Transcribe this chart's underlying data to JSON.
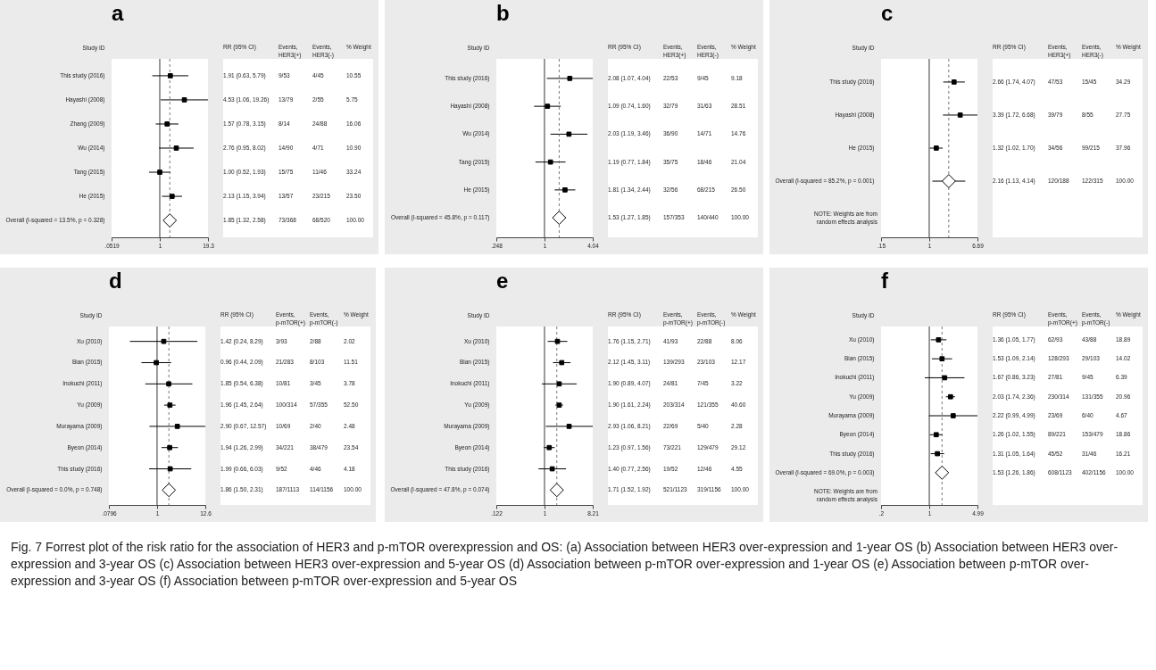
{
  "chart_data": [
    {
      "type": "scatter",
      "title": "a",
      "orientation": "horizontal",
      "log": "x",
      "ylabel": "Study ID",
      "xlim": [
        0.0519,
        19.3
      ],
      "xticks": [
        {
          "value": 0.0519,
          "label": ".0519"
        },
        1,
        19.3
      ],
      "categories": [
        "This study (2016)",
        "Hayashi (2008)",
        "Zhang (2009)",
        "Wu (2014)",
        "Tang (2015)",
        "He (2015)",
        "Overall (I-squared = 13.5%, p = 0.328)"
      ],
      "series": [
        {
          "color": "#000000",
          "marker": "square",
          "values": [
            1.91,
            4.53,
            1.57,
            2.76,
            1.0,
            2.13,
            null
          ],
          "errors": [
            [
              0.63,
              5.79
            ],
            [
              1.06,
              19.26
            ],
            [
              0.78,
              3.15
            ],
            [
              0.95,
              8.02
            ],
            [
              0.52,
              1.93
            ],
            [
              1.15,
              3.94
            ],
            null
          ]
        },
        {
          "color": "#000000",
          "marker": "diamond",
          "values": [
            null,
            null,
            null,
            null,
            null,
            null,
            1.85
          ],
          "errors": [
            null,
            null,
            null,
            null,
            null,
            null,
            [
              1.32,
              2.58
            ]
          ]
        }
      ],
      "ref_lines": [
        {
          "axis": "x",
          "value": 1,
          "color": "#000000"
        },
        {
          "axis": "x",
          "value": 1.85,
          "color": "#555555",
          "line_style": "dashed"
        }
      ],
      "annotations": [
        "RR (95% CI)",
        "Events, HER3(+)",
        "Events, HER3(-)",
        "% Weight",
        "1.91 (0.63, 5.79)",
        "9/53",
        "4/45",
        "10.55",
        "4.53 (1.06, 19.26)",
        "13/79",
        "2/55",
        "5.75",
        "1.57 (0.78, 3.15)",
        "8/14",
        "24/88",
        "16.06",
        "2.76 (0.95, 8.02)",
        "14/90",
        "4/71",
        "10.90",
        "1.00 (0.52, 1.93)",
        "15/75",
        "11/46",
        "33.24",
        "2.13 (1.15, 3.94)",
        "13/57",
        "23/215",
        "23.50",
        "1.85 (1.32, 2.58)",
        "73/368",
        "68/520",
        "100.00"
      ]
    },
    {
      "type": "scatter",
      "title": "b",
      "orientation": "horizontal",
      "log": "x",
      "ylabel": "Study ID",
      "xlim": [
        0.248,
        4.04
      ],
      "xticks": [
        {
          "value": 0.248,
          "label": ".248"
        },
        1,
        4.04
      ],
      "categories": [
        "This study (2016)",
        "Hayashi (2008)",
        "Wu (2014)",
        "Tang (2015)",
        "He (2015)",
        "Overall (I-squared = 45.8%, p = 0.117)"
      ],
      "series": [
        {
          "color": "#000000",
          "marker": "square",
          "values": [
            2.08,
            1.09,
            2.03,
            1.19,
            1.81,
            null
          ],
          "errors": [
            [
              1.07,
              4.04
            ],
            [
              0.74,
              1.6
            ],
            [
              1.19,
              3.46
            ],
            [
              0.77,
              1.84
            ],
            [
              1.34,
              2.44
            ],
            null
          ]
        },
        {
          "color": "#000000",
          "marker": "diamond",
          "values": [
            null,
            null,
            null,
            null,
            null,
            1.53
          ],
          "errors": [
            null,
            null,
            null,
            null,
            null,
            [
              1.27,
              1.85
            ]
          ]
        }
      ],
      "ref_lines": [
        {
          "axis": "x",
          "value": 1,
          "color": "#000000"
        },
        {
          "axis": "x",
          "value": 1.53,
          "color": "#555555",
          "line_style": "dashed"
        }
      ],
      "annotations": [
        "RR (95% CI)",
        "Events, HER3(+)",
        "Events, HER3(-)",
        "% Weight",
        "2.08 (1.07, 4.04)",
        "22/53",
        "9/45",
        "9.18",
        "1.09 (0.74, 1.60)",
        "32/79",
        "31/63",
        "28.51",
        "2.03 (1.19, 3.46)",
        "36/90",
        "14/71",
        "14.76",
        "1.19 (0.77, 1.84)",
        "35/75",
        "18/46",
        "21.04",
        "1.81 (1.34, 2.44)",
        "32/56",
        "68/215",
        "26.50",
        "1.53 (1.27, 1.85)",
        "157/353",
        "140/440",
        "100.00"
      ]
    },
    {
      "type": "scatter",
      "title": "c",
      "orientation": "horizontal",
      "log": "x",
      "ylabel": "Study ID",
      "xlim": [
        0.15,
        6.69
      ],
      "xticks": [
        {
          "value": 0.15,
          "label": ".15"
        },
        1,
        6.69
      ],
      "categories": [
        "This study (2016)",
        "Hayashi (2008)",
        "He (2015)",
        "Overall (I-squared = 85.2%, p = 0.001)"
      ],
      "series": [
        {
          "color": "#000000",
          "marker": "square",
          "values": [
            2.66,
            3.39,
            1.32,
            null
          ],
          "errors": [
            [
              1.74,
              4.07
            ],
            [
              1.72,
              6.68
            ],
            [
              1.02,
              1.7
            ],
            null
          ]
        },
        {
          "color": "#000000",
          "marker": "diamond",
          "values": [
            null,
            null,
            null,
            2.16
          ],
          "errors": [
            null,
            null,
            null,
            [
              1.13,
              4.14
            ]
          ]
        }
      ],
      "ref_lines": [
        {
          "axis": "x",
          "value": 1,
          "color": "#000000"
        },
        {
          "axis": "x",
          "value": 2.16,
          "color": "#555555",
          "line_style": "dashed"
        }
      ],
      "annotations": [
        "RR (95% CI)",
        "Events, HER3(+)",
        "Events, HER3(-)",
        "% Weight",
        "2.66 (1.74, 4.07)",
        "47/53",
        "15/45",
        "34.29",
        "3.39 (1.72, 6.68)",
        "39/79",
        "8/55",
        "27.75",
        "1.32 (1.02, 1.70)",
        "34/56",
        "99/215",
        "37.96",
        "2.16 (1.13, 4.14)",
        "120/188",
        "122/315",
        "100.00",
        "NOTE: Weights are from random effects analysis"
      ]
    },
    {
      "type": "scatter",
      "title": "d",
      "orientation": "horizontal",
      "log": "x",
      "ylabel": "Study ID",
      "xlim": [
        0.0796,
        12.6
      ],
      "xticks": [
        {
          "value": 0.0796,
          "label": ".0796"
        },
        1,
        12.6
      ],
      "categories": [
        "Xu (2010)",
        "Bian (2015)",
        "Inokuchi (2011)",
        "Yu (2009)",
        "Murayama (2009)",
        "Byeon (2014)",
        "This study (2016)",
        "Overall (I-squared = 0.0%, p = 0.748)"
      ],
      "series": [
        {
          "color": "#000000",
          "marker": "square",
          "values": [
            1.42,
            0.96,
            1.85,
            1.96,
            2.9,
            1.94,
            1.99,
            null
          ],
          "errors": [
            [
              0.24,
              8.29
            ],
            [
              0.44,
              2.09
            ],
            [
              0.54,
              6.38
            ],
            [
              1.45,
              2.64
            ],
            [
              0.67,
              12.57
            ],
            [
              1.26,
              2.99
            ],
            [
              0.66,
              6.03
            ],
            null
          ]
        },
        {
          "color": "#000000",
          "marker": "diamond",
          "values": [
            null,
            null,
            null,
            null,
            null,
            null,
            null,
            1.86
          ],
          "errors": [
            null,
            null,
            null,
            null,
            null,
            null,
            null,
            [
              1.5,
              2.31
            ]
          ]
        }
      ],
      "ref_lines": [
        {
          "axis": "x",
          "value": 1,
          "color": "#000000"
        },
        {
          "axis": "x",
          "value": 1.86,
          "color": "#555555",
          "line_style": "dashed"
        }
      ],
      "annotations": [
        "RR (95% CI)",
        "Events, p-mTOR(+)",
        "Events, p-mTOR(-)",
        "% Weight",
        "1.42 (0.24, 8.29)",
        "3/93",
        "2/88",
        "2.02",
        "0.96 (0.44, 2.09)",
        "21/283",
        "8/103",
        "11.51",
        "1.85 (0.54, 6.38)",
        "10/81",
        "3/45",
        "3.78",
        "1.96 (1.45, 2.64)",
        "100/314",
        "57/355",
        "52.50",
        "2.90 (0.67, 12.57)",
        "10/69",
        "2/40",
        "2.48",
        "1.94 (1.26, 2.99)",
        "34/221",
        "38/479",
        "23.54",
        "1.99 (0.66, 6.03)",
        "9/52",
        "4/46",
        "4.18",
        "1.86 (1.50, 2.31)",
        "187/1113",
        "114/1156",
        "100.00"
      ]
    },
    {
      "type": "scatter",
      "title": "e",
      "orientation": "horizontal",
      "log": "x",
      "ylabel": "Study ID",
      "xlim": [
        0.122,
        8.21
      ],
      "xticks": [
        {
          "value": 0.122,
          "label": ".122"
        },
        1,
        8.21
      ],
      "categories": [
        "Xu (2010)",
        "Bian (2015)",
        "Inokuchi (2011)",
        "Yu (2009)",
        "Murayama (2009)",
        "Byeon (2014)",
        "This study (2016)",
        "Overall (I-squared = 47.8%, p = 0.074)"
      ],
      "series": [
        {
          "color": "#000000",
          "marker": "square",
          "values": [
            1.76,
            2.12,
            1.9,
            1.9,
            2.93,
            1.23,
            1.4,
            null
          ],
          "errors": [
            [
              1.15,
              2.71
            ],
            [
              1.45,
              3.11
            ],
            [
              0.89,
              4.07
            ],
            [
              1.61,
              2.24
            ],
            [
              1.06,
              8.21
            ],
            [
              0.97,
              1.56
            ],
            [
              0.77,
              2.56
            ],
            null
          ]
        },
        {
          "color": "#000000",
          "marker": "diamond",
          "values": [
            null,
            null,
            null,
            null,
            null,
            null,
            null,
            1.71
          ],
          "errors": [
            null,
            null,
            null,
            null,
            null,
            null,
            null,
            [
              1.52,
              1.92
            ]
          ]
        }
      ],
      "ref_lines": [
        {
          "axis": "x",
          "value": 1,
          "color": "#000000"
        },
        {
          "axis": "x",
          "value": 1.71,
          "color": "#555555",
          "line_style": "dashed"
        }
      ],
      "annotations": [
        "RR (95% CI)",
        "Events, p-mTOR(+)",
        "Events, p-mTOR(-)",
        "% Weight",
        "1.76 (1.15, 2.71)",
        "41/93",
        "22/88",
        "8.06",
        "2.12 (1.45, 3.11)",
        "139/293",
        "23/103",
        "12.17",
        "1.90 (0.89, 4.07)",
        "24/81",
        "7/45",
        "3.22",
        "1.90 (1.61, 2.24)",
        "203/314",
        "121/355",
        "40.60",
        "2.93 (1.06, 8.21)",
        "22/69",
        "5/40",
        "2.28",
        "1.23 (0.97, 1.56)",
        "73/221",
        "129/479",
        "29.12",
        "1.40 (0.77, 2.56)",
        "19/52",
        "12/46",
        "4.55",
        "1.71 (1.52, 1.92)",
        "521/1123",
        "319/1156",
        "100.00"
      ]
    },
    {
      "type": "scatter",
      "title": "f",
      "orientation": "horizontal",
      "log": "x",
      "ylabel": "Study ID",
      "xlim": [
        0.2,
        4.99
      ],
      "xticks": [
        {
          "value": 0.2,
          "label": ".2"
        },
        1,
        4.99
      ],
      "categories": [
        "Xu (2010)",
        "Bian (2015)",
        "Inokuchi (2011)",
        "Yu (2009)",
        "Murayama (2009)",
        "Byeon (2014)",
        "This study (2016)",
        "Overall (I-squared = 69.0%, p = 0.003)"
      ],
      "series": [
        {
          "color": "#000000",
          "marker": "square",
          "values": [
            1.36,
            1.53,
            1.67,
            2.03,
            2.22,
            1.26,
            1.31,
            null
          ],
          "errors": [
            [
              1.05,
              1.77
            ],
            [
              1.09,
              2.14
            ],
            [
              0.86,
              3.23
            ],
            [
              1.74,
              2.36
            ],
            [
              0.99,
              4.99
            ],
            [
              1.02,
              1.55
            ],
            [
              1.05,
              1.64
            ],
            null
          ]
        },
        {
          "color": "#000000",
          "marker": "diamond",
          "values": [
            null,
            null,
            null,
            null,
            null,
            null,
            null,
            1.53
          ],
          "errors": [
            null,
            null,
            null,
            null,
            null,
            null,
            null,
            [
              1.26,
              1.86
            ]
          ]
        }
      ],
      "ref_lines": [
        {
          "axis": "x",
          "value": 1,
          "color": "#000000"
        },
        {
          "axis": "x",
          "value": 1.53,
          "color": "#555555",
          "line_style": "dashed"
        }
      ],
      "annotations": [
        "RR (95% CI)",
        "Events, p-mTOR(+)",
        "Events, p-mTOR(-)",
        "% Weight",
        "1.36 (1.05, 1.77)",
        "62/93",
        "43/88",
        "18.89",
        "1.53 (1.09, 2.14)",
        "128/293",
        "29/103",
        "14.02",
        "1.67 (0.86, 3.23)",
        "27/81",
        "9/45",
        "6.39",
        "2.03 (1.74, 2.36)",
        "230/314",
        "131/355",
        "20.96",
        "2.22 (0.99, 4.99)",
        "23/69",
        "6/40",
        "4.67",
        "1.26 (1.02, 1.55)",
        "89/221",
        "153/479",
        "18.86",
        "1.31 (1.05, 1.64)",
        "45/52",
        "31/46",
        "16.21",
        "1.53 (1.26, 1.86)",
        "608/1123",
        "402/1156",
        "100.00",
        "NOTE: Weights are from random effects analysis",
        "Fig. 7 Forrest plot of the risk ratio for the association of HER3 and p-mTOR overexpression and OS: (a) Association between HER3 over-expression and 1-year OS (b) Association between HER3 over-expression and 3-year OS (c) Association between HER3 over-expression and 5-year OS (d) Association between p-mTOR over-expression and 1-year OS (e) Association between p-mTOR over-expression and 3-year OS (f) Association between p-mTOR over-expression and 5-year OS"
      ]
    }
  ]
}
